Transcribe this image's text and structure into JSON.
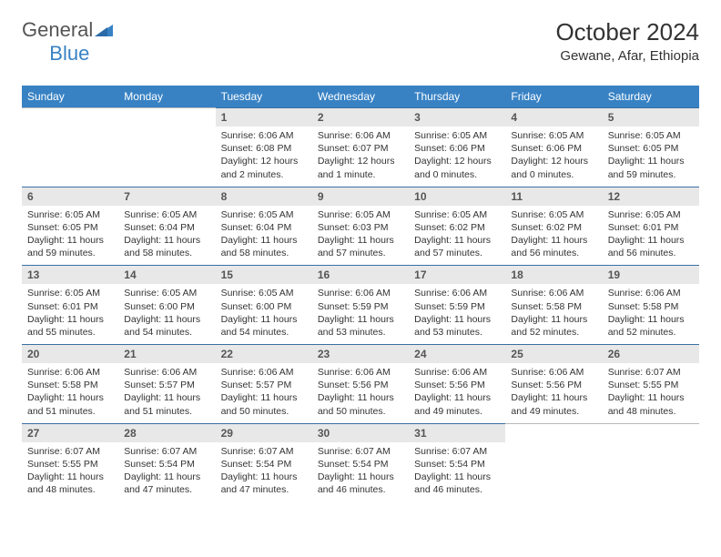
{
  "logo": {
    "part1": "General",
    "part2": "Blue"
  },
  "title": "October 2024",
  "location": "Gewane, Afar, Ethiopia",
  "colors": {
    "header_bg": "#3882c4",
    "header_text": "#ffffff",
    "daynum_bg": "#e8e8e8",
    "cell_border": "#3a6ea5",
    "empty_border": "#b8b8b8",
    "text": "#333333",
    "logo_blue": "#3882c4"
  },
  "day_headers": [
    "Sunday",
    "Monday",
    "Tuesday",
    "Wednesday",
    "Thursday",
    "Friday",
    "Saturday"
  ],
  "weeks": [
    [
      null,
      null,
      {
        "n": "1",
        "sr": "6:06 AM",
        "ss": "6:08 PM",
        "dl": "12 hours and 2 minutes."
      },
      {
        "n": "2",
        "sr": "6:06 AM",
        "ss": "6:07 PM",
        "dl": "12 hours and 1 minute."
      },
      {
        "n": "3",
        "sr": "6:05 AM",
        "ss": "6:06 PM",
        "dl": "12 hours and 0 minutes."
      },
      {
        "n": "4",
        "sr": "6:05 AM",
        "ss": "6:06 PM",
        "dl": "12 hours and 0 minutes."
      },
      {
        "n": "5",
        "sr": "6:05 AM",
        "ss": "6:05 PM",
        "dl": "11 hours and 59 minutes."
      }
    ],
    [
      {
        "n": "6",
        "sr": "6:05 AM",
        "ss": "6:05 PM",
        "dl": "11 hours and 59 minutes."
      },
      {
        "n": "7",
        "sr": "6:05 AM",
        "ss": "6:04 PM",
        "dl": "11 hours and 58 minutes."
      },
      {
        "n": "8",
        "sr": "6:05 AM",
        "ss": "6:04 PM",
        "dl": "11 hours and 58 minutes."
      },
      {
        "n": "9",
        "sr": "6:05 AM",
        "ss": "6:03 PM",
        "dl": "11 hours and 57 minutes."
      },
      {
        "n": "10",
        "sr": "6:05 AM",
        "ss": "6:02 PM",
        "dl": "11 hours and 57 minutes."
      },
      {
        "n": "11",
        "sr": "6:05 AM",
        "ss": "6:02 PM",
        "dl": "11 hours and 56 minutes."
      },
      {
        "n": "12",
        "sr": "6:05 AM",
        "ss": "6:01 PM",
        "dl": "11 hours and 56 minutes."
      }
    ],
    [
      {
        "n": "13",
        "sr": "6:05 AM",
        "ss": "6:01 PM",
        "dl": "11 hours and 55 minutes."
      },
      {
        "n": "14",
        "sr": "6:05 AM",
        "ss": "6:00 PM",
        "dl": "11 hours and 54 minutes."
      },
      {
        "n": "15",
        "sr": "6:05 AM",
        "ss": "6:00 PM",
        "dl": "11 hours and 54 minutes."
      },
      {
        "n": "16",
        "sr": "6:06 AM",
        "ss": "5:59 PM",
        "dl": "11 hours and 53 minutes."
      },
      {
        "n": "17",
        "sr": "6:06 AM",
        "ss": "5:59 PM",
        "dl": "11 hours and 53 minutes."
      },
      {
        "n": "18",
        "sr": "6:06 AM",
        "ss": "5:58 PM",
        "dl": "11 hours and 52 minutes."
      },
      {
        "n": "19",
        "sr": "6:06 AM",
        "ss": "5:58 PM",
        "dl": "11 hours and 52 minutes."
      }
    ],
    [
      {
        "n": "20",
        "sr": "6:06 AM",
        "ss": "5:58 PM",
        "dl": "11 hours and 51 minutes."
      },
      {
        "n": "21",
        "sr": "6:06 AM",
        "ss": "5:57 PM",
        "dl": "11 hours and 51 minutes."
      },
      {
        "n": "22",
        "sr": "6:06 AM",
        "ss": "5:57 PM",
        "dl": "11 hours and 50 minutes."
      },
      {
        "n": "23",
        "sr": "6:06 AM",
        "ss": "5:56 PM",
        "dl": "11 hours and 50 minutes."
      },
      {
        "n": "24",
        "sr": "6:06 AM",
        "ss": "5:56 PM",
        "dl": "11 hours and 49 minutes."
      },
      {
        "n": "25",
        "sr": "6:06 AM",
        "ss": "5:56 PM",
        "dl": "11 hours and 49 minutes."
      },
      {
        "n": "26",
        "sr": "6:07 AM",
        "ss": "5:55 PM",
        "dl": "11 hours and 48 minutes."
      }
    ],
    [
      {
        "n": "27",
        "sr": "6:07 AM",
        "ss": "5:55 PM",
        "dl": "11 hours and 48 minutes."
      },
      {
        "n": "28",
        "sr": "6:07 AM",
        "ss": "5:54 PM",
        "dl": "11 hours and 47 minutes."
      },
      {
        "n": "29",
        "sr": "6:07 AM",
        "ss": "5:54 PM",
        "dl": "11 hours and 47 minutes."
      },
      {
        "n": "30",
        "sr": "6:07 AM",
        "ss": "5:54 PM",
        "dl": "11 hours and 46 minutes."
      },
      {
        "n": "31",
        "sr": "6:07 AM",
        "ss": "5:54 PM",
        "dl": "11 hours and 46 minutes."
      },
      null,
      null
    ]
  ],
  "labels": {
    "sunrise": "Sunrise:",
    "sunset": "Sunset:",
    "daylight": "Daylight:"
  }
}
